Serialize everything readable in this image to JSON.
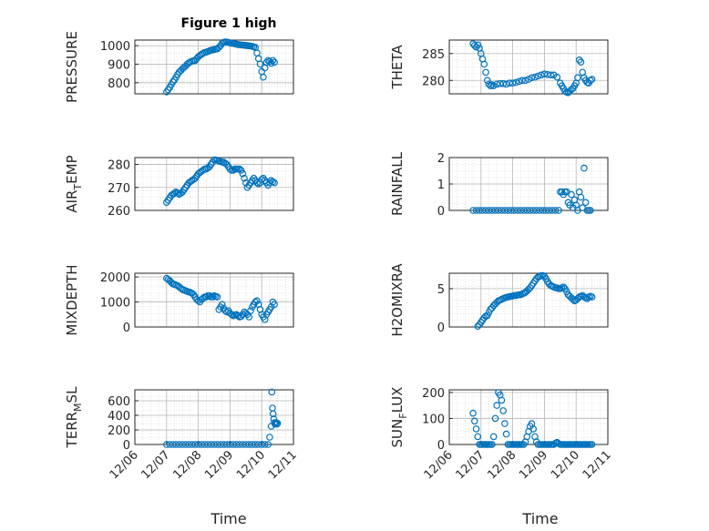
{
  "figure": {
    "title": "Figure 1 high"
  },
  "style": {
    "marker_color": "#0072BD",
    "axis_color": "#262626",
    "grid_color": "#cfcfcf"
  },
  "chart_data": [
    {
      "id": "pressure",
      "type": "scatter",
      "ylabel": "PRESSURE",
      "ylim": [
        740,
        1030
      ],
      "yticks": [
        800,
        900,
        1000
      ],
      "xlim": [
        6,
        11
      ],
      "xticks": [],
      "xticklabels": [],
      "x": [
        7.0,
        7.05,
        7.1,
        7.15,
        7.2,
        7.25,
        7.3,
        7.35,
        7.4,
        7.45,
        7.5,
        7.55,
        7.6,
        7.65,
        7.7,
        7.75,
        7.8,
        7.85,
        7.9,
        7.95,
        8.0,
        8.05,
        8.1,
        8.15,
        8.2,
        8.25,
        8.3,
        8.35,
        8.4,
        8.45,
        8.5,
        8.55,
        8.6,
        8.65,
        8.7,
        8.75,
        8.8,
        8.85,
        8.9,
        8.95,
        9.0,
        9.05,
        9.1,
        9.15,
        9.2,
        9.25,
        9.3,
        9.35,
        9.4,
        9.45,
        9.5,
        9.55,
        9.6,
        9.65,
        9.7,
        9.75,
        9.8,
        9.85,
        9.9,
        9.95,
        10.0,
        10.05,
        10.1,
        10.15,
        10.2,
        10.25,
        10.3,
        10.35,
        10.4
      ],
      "y": [
        750,
        762,
        775,
        790,
        805,
        815,
        830,
        845,
        858,
        866,
        875,
        883,
        890,
        900,
        907,
        912,
        916,
        918,
        920,
        930,
        940,
        947,
        953,
        958,
        963,
        965,
        968,
        972,
        975,
        977,
        979,
        981,
        983,
        990,
        1000,
        1012,
        1018,
        1020,
        1019,
        1017,
        1015,
        1013,
        1012,
        1010,
        1008,
        1006,
        1005,
        1004,
        1003,
        1002,
        1001,
        1000,
        999,
        998,
        996,
        993,
        990,
        960,
        930,
        900,
        860,
        830,
        880,
        910,
        920,
        915,
        905,
        920,
        910
      ]
    },
    {
      "id": "theta",
      "type": "scatter",
      "ylabel": "THETA",
      "ylim": [
        277.5,
        287.5
      ],
      "yticks": [
        280,
        285
      ],
      "xlim": [
        6,
        11
      ],
      "xticks": [],
      "xticklabels": [],
      "x": [
        6.75,
        6.8,
        6.85,
        6.9,
        6.95,
        7.0,
        7.05,
        7.1,
        7.15,
        7.2,
        7.25,
        7.3,
        7.35,
        7.4,
        7.5,
        7.6,
        7.7,
        7.8,
        7.9,
        8.0,
        8.1,
        8.2,
        8.3,
        8.4,
        8.5,
        8.6,
        8.7,
        8.8,
        8.9,
        9.0,
        9.1,
        9.2,
        9.3,
        9.4,
        9.5,
        9.55,
        9.6,
        9.65,
        9.7,
        9.75,
        9.8,
        9.85,
        9.9,
        9.95,
        10.0,
        10.05,
        10.1,
        10.15,
        10.2,
        10.25,
        10.3,
        10.35,
        10.4,
        10.45,
        10.5
      ],
      "y": [
        286.8,
        286.5,
        286.2,
        286.6,
        286.0,
        285.0,
        284.0,
        283.0,
        281.5,
        280.0,
        279.3,
        279.0,
        279.2,
        279.0,
        279.3,
        279.4,
        279.4,
        279.3,
        279.5,
        279.5,
        279.6,
        279.8,
        280.0,
        280.0,
        280.2,
        280.5,
        280.6,
        280.8,
        281.0,
        281.2,
        281.1,
        281.0,
        281.0,
        280.6,
        279.5,
        279.0,
        278.5,
        278.0,
        277.8,
        277.7,
        278.0,
        278.3,
        278.5,
        279.0,
        279.5,
        280.5,
        283.8,
        283.4,
        281.5,
        280.5,
        280.0,
        279.6,
        279.5,
        280.0,
        280.2
      ]
    },
    {
      "id": "air_temp",
      "type": "scatter",
      "ylabel": "AIR_TEMP",
      "ylim": [
        260,
        283
      ],
      "yticks": [
        260,
        270,
        280
      ],
      "xlim": [
        6,
        11
      ],
      "xticks": [],
      "xticklabels": [],
      "x": [
        7.0,
        7.05,
        7.1,
        7.15,
        7.2,
        7.25,
        7.3,
        7.35,
        7.4,
        7.45,
        7.5,
        7.55,
        7.6,
        7.65,
        7.7,
        7.75,
        7.8,
        7.85,
        7.9,
        7.95,
        8.0,
        8.05,
        8.1,
        8.15,
        8.2,
        8.25,
        8.3,
        8.35,
        8.4,
        8.45,
        8.5,
        8.55,
        8.6,
        8.65,
        8.7,
        8.75,
        8.8,
        8.85,
        8.9,
        8.95,
        9.0,
        9.05,
        9.1,
        9.15,
        9.2,
        9.25,
        9.3,
        9.35,
        9.4,
        9.45,
        9.5,
        9.55,
        9.6,
        9.65,
        9.7,
        9.75,
        9.8,
        9.85,
        9.9,
        9.95,
        10.0,
        10.05,
        10.1,
        10.15,
        10.2,
        10.25,
        10.3,
        10.35,
        10.4
      ],
      "y": [
        263.5,
        264.5,
        265.5,
        266.5,
        267.0,
        267.5,
        268.0,
        267.5,
        267.0,
        267.5,
        268.0,
        269.0,
        270.0,
        271.0,
        272.0,
        272.5,
        273.0,
        273.5,
        274.0,
        275.0,
        276.0,
        276.5,
        277.0,
        277.5,
        278.0,
        278.0,
        278.5,
        279.0,
        280.0,
        281.0,
        282.0,
        282.0,
        281.8,
        281.5,
        281.2,
        281.0,
        281.0,
        280.5,
        280.0,
        279.0,
        278.0,
        277.5,
        277.5,
        278.0,
        278.0,
        278.0,
        278.0,
        277.5,
        276.0,
        274.0,
        272.0,
        270.0,
        271.0,
        272.0,
        273.0,
        274.0,
        273.0,
        272.0,
        271.5,
        272.0,
        273.5,
        274.0,
        273.0,
        272.0,
        271.0,
        272.0,
        273.0,
        272.5,
        272.0
      ]
    },
    {
      "id": "rainfall",
      "type": "scatter",
      "ylabel": "RAINFALL",
      "ylim": [
        0,
        2
      ],
      "yticks": [
        0,
        1,
        2
      ],
      "xlim": [
        6,
        11
      ],
      "xticks": [],
      "xticklabels": [],
      "x": [
        6.75,
        6.85,
        6.95,
        7.05,
        7.15,
        7.25,
        7.35,
        7.45,
        7.55,
        7.65,
        7.75,
        7.85,
        7.95,
        8.05,
        8.15,
        8.25,
        8.35,
        8.45,
        8.55,
        8.65,
        8.75,
        8.85,
        8.95,
        9.05,
        9.15,
        9.25,
        9.35,
        9.45,
        9.5,
        9.55,
        9.6,
        9.65,
        9.7,
        9.75,
        9.8,
        9.85,
        9.9,
        9.95,
        10.0,
        10.05,
        10.1,
        10.15,
        10.2,
        10.25,
        10.3,
        10.35,
        10.4,
        10.45
      ],
      "y": [
        0,
        0,
        0,
        0,
        0,
        0,
        0,
        0,
        0,
        0,
        0,
        0,
        0,
        0,
        0,
        0,
        0,
        0,
        0,
        0,
        0,
        0,
        0,
        0,
        0,
        0,
        0,
        0,
        0.7,
        0.7,
        0.6,
        0.7,
        0.7,
        0.3,
        0.2,
        0.6,
        0.1,
        0.4,
        0.2,
        0,
        0.7,
        0.5,
        0.1,
        1.6,
        0.3,
        0,
        0,
        0
      ]
    },
    {
      "id": "mixdepth",
      "type": "scatter",
      "ylabel": "MIXDEPTH",
      "ylim": [
        0,
        2150
      ],
      "yticks": [
        0,
        1000,
        2000
      ],
      "xlim": [
        6,
        11
      ],
      "xticks": [],
      "xticklabels": [],
      "x": [
        7.0,
        7.05,
        7.1,
        7.15,
        7.2,
        7.25,
        7.3,
        7.35,
        7.4,
        7.45,
        7.5,
        7.55,
        7.6,
        7.65,
        7.7,
        7.75,
        7.8,
        7.85,
        7.9,
        7.95,
        8.0,
        8.05,
        8.1,
        8.15,
        8.2,
        8.25,
        8.3,
        8.35,
        8.4,
        8.45,
        8.5,
        8.55,
        8.6,
        8.65,
        8.7,
        8.75,
        8.8,
        8.85,
        8.9,
        8.95,
        9.0,
        9.05,
        9.1,
        9.15,
        9.2,
        9.25,
        9.3,
        9.35,
        9.4,
        9.45,
        9.5,
        9.55,
        9.6,
        9.65,
        9.7,
        9.75,
        9.8,
        9.85,
        9.9,
        9.95,
        10.0,
        10.05,
        10.1,
        10.15,
        10.2,
        10.25,
        10.3,
        10.35,
        10.4
      ],
      "y": [
        1950,
        1900,
        1850,
        1780,
        1720,
        1700,
        1680,
        1650,
        1600,
        1550,
        1500,
        1480,
        1450,
        1420,
        1400,
        1380,
        1350,
        1300,
        1200,
        1100,
        1050,
        1000,
        1100,
        1150,
        1200,
        1200,
        1250,
        1250,
        1200,
        1200,
        1250,
        1220,
        1200,
        700,
        800,
        900,
        750,
        650,
        600,
        650,
        550,
        500,
        450,
        480,
        500,
        450,
        400,
        420,
        500,
        600,
        550,
        500,
        400,
        650,
        800,
        900,
        1000,
        1050,
        900,
        700,
        500,
        400,
        300,
        500,
        600,
        700,
        800,
        1000,
        900
      ]
    },
    {
      "id": "h2omixra",
      "type": "scatter",
      "ylabel": "H2OMIXRA",
      "ylim": [
        0,
        7
      ],
      "yticks": [
        0,
        5
      ],
      "xlim": [
        6,
        11
      ],
      "xticks": [],
      "xticklabels": [],
      "x": [
        6.9,
        6.95,
        7.0,
        7.05,
        7.1,
        7.15,
        7.2,
        7.25,
        7.3,
        7.35,
        7.4,
        7.45,
        7.5,
        7.55,
        7.6,
        7.65,
        7.7,
        7.75,
        7.8,
        7.85,
        7.9,
        7.95,
        8.0,
        8.05,
        8.1,
        8.15,
        8.2,
        8.25,
        8.3,
        8.35,
        8.4,
        8.45,
        8.5,
        8.55,
        8.6,
        8.65,
        8.7,
        8.75,
        8.8,
        8.85,
        8.9,
        8.95,
        9.0,
        9.05,
        9.1,
        9.15,
        9.2,
        9.25,
        9.3,
        9.35,
        9.4,
        9.45,
        9.5,
        9.55,
        9.6,
        9.65,
        9.7,
        9.75,
        9.8,
        9.85,
        9.9,
        9.95,
        10.0,
        10.05,
        10.1,
        10.15,
        10.2,
        10.25,
        10.3,
        10.35,
        10.4,
        10.45,
        10.5
      ],
      "y": [
        0.1,
        0.3,
        0.6,
        0.9,
        1.2,
        1.4,
        1.5,
        1.9,
        2.3,
        2.5,
        2.8,
        3.0,
        3.2,
        3.4,
        3.5,
        3.6,
        3.7,
        3.8,
        3.85,
        3.9,
        3.95,
        4.0,
        4.05,
        4.1,
        4.1,
        4.15,
        4.2,
        4.2,
        4.3,
        4.4,
        4.5,
        4.7,
        4.9,
        5.1,
        5.4,
        5.7,
        6.0,
        6.3,
        6.5,
        6.6,
        6.7,
        6.7,
        6.6,
        6.3,
        5.9,
        5.6,
        5.4,
        5.3,
        5.2,
        5.1,
        5.1,
        5.0,
        5.0,
        5.1,
        5.2,
        5.0,
        4.6,
        4.2,
        4.0,
        3.8,
        3.6,
        3.4,
        3.5,
        3.7,
        3.9,
        4.0,
        4.1,
        3.9,
        3.8,
        3.7,
        3.9,
        4.0,
        3.9
      ]
    },
    {
      "id": "terr_msl",
      "type": "scatter",
      "ylabel": "TERR_MSL",
      "ylim": [
        0,
        750
      ],
      "yticks": [
        0,
        200,
        400,
        600
      ],
      "xlim": [
        6,
        11
      ],
      "xticks": [],
      "xticklabels": [],
      "x": [
        7.0,
        7.1,
        7.2,
        7.3,
        7.4,
        7.5,
        7.6,
        7.7,
        7.8,
        7.9,
        8.0,
        8.1,
        8.2,
        8.3,
        8.4,
        8.5,
        8.6,
        8.7,
        8.8,
        8.9,
        9.0,
        9.1,
        9.2,
        9.3,
        9.4,
        9.5,
        9.6,
        9.7,
        9.8,
        9.9,
        10.0,
        10.1,
        10.2,
        10.25,
        10.3,
        10.32,
        10.34,
        10.36,
        10.38,
        10.4,
        10.42,
        10.44,
        10.46,
        10.48,
        10.5
      ],
      "y": [
        0,
        0,
        0,
        0,
        0,
        0,
        0,
        0,
        0,
        0,
        0,
        0,
        0,
        0,
        0,
        0,
        0,
        0,
        0,
        0,
        0,
        0,
        0,
        0,
        0,
        0,
        0,
        0,
        0,
        0,
        0,
        0,
        0,
        100,
        250,
        720,
        500,
        420,
        350,
        300,
        280,
        290,
        300,
        280,
        290
      ]
    },
    {
      "id": "sun_flux",
      "type": "scatter",
      "ylabel": "SUN_FLUX",
      "ylim": [
        0,
        210
      ],
      "yticks": [
        0,
        100,
        200
      ],
      "xlim": [
        6,
        11
      ],
      "xticks": [
        6,
        7,
        8,
        9,
        10,
        11
      ],
      "xticklabels": [
        "12/06",
        "12/07",
        "12/08",
        "12/09",
        "12/10",
        "12/11"
      ],
      "xlabel": "Time",
      "x": [
        6.75,
        6.8,
        6.85,
        6.9,
        6.95,
        7.0,
        7.05,
        7.1,
        7.15,
        7.2,
        7.25,
        7.3,
        7.35,
        7.4,
        7.45,
        7.5,
        7.55,
        7.6,
        7.65,
        7.7,
        7.75,
        7.8,
        7.85,
        7.9,
        7.95,
        8.0,
        8.05,
        8.1,
        8.15,
        8.2,
        8.25,
        8.3,
        8.35,
        8.4,
        8.45,
        8.5,
        8.55,
        8.6,
        8.65,
        8.7,
        8.75,
        8.8,
        8.85,
        8.9,
        8.95,
        9.0,
        9.05,
        9.1,
        9.15,
        9.2,
        9.25,
        9.3,
        9.35,
        9.4,
        9.45,
        9.5,
        9.55,
        9.6,
        9.65,
        9.7,
        9.75,
        9.8,
        9.85,
        9.9,
        9.95,
        10.0,
        10.05,
        10.1,
        10.15,
        10.2,
        10.25,
        10.3,
        10.35,
        10.4,
        10.45,
        10.5
      ],
      "y": [
        120,
        90,
        60,
        30,
        0,
        0,
        0,
        0,
        0,
        0,
        0,
        0,
        0,
        30,
        100,
        150,
        200,
        190,
        170,
        130,
        80,
        40,
        0,
        0,
        0,
        0,
        0,
        0,
        0,
        0,
        0,
        0,
        0,
        10,
        30,
        50,
        70,
        80,
        60,
        30,
        10,
        0,
        0,
        0,
        0,
        0,
        0,
        0,
        0,
        0,
        0,
        0,
        5,
        8,
        3,
        0,
        0,
        0,
        0,
        0,
        0,
        0,
        0,
        0,
        0,
        0,
        0,
        0,
        0,
        0,
        0,
        0,
        0,
        0,
        0,
        0
      ]
    }
  ],
  "xlabels": {
    "left": "Time",
    "right": "Time"
  }
}
